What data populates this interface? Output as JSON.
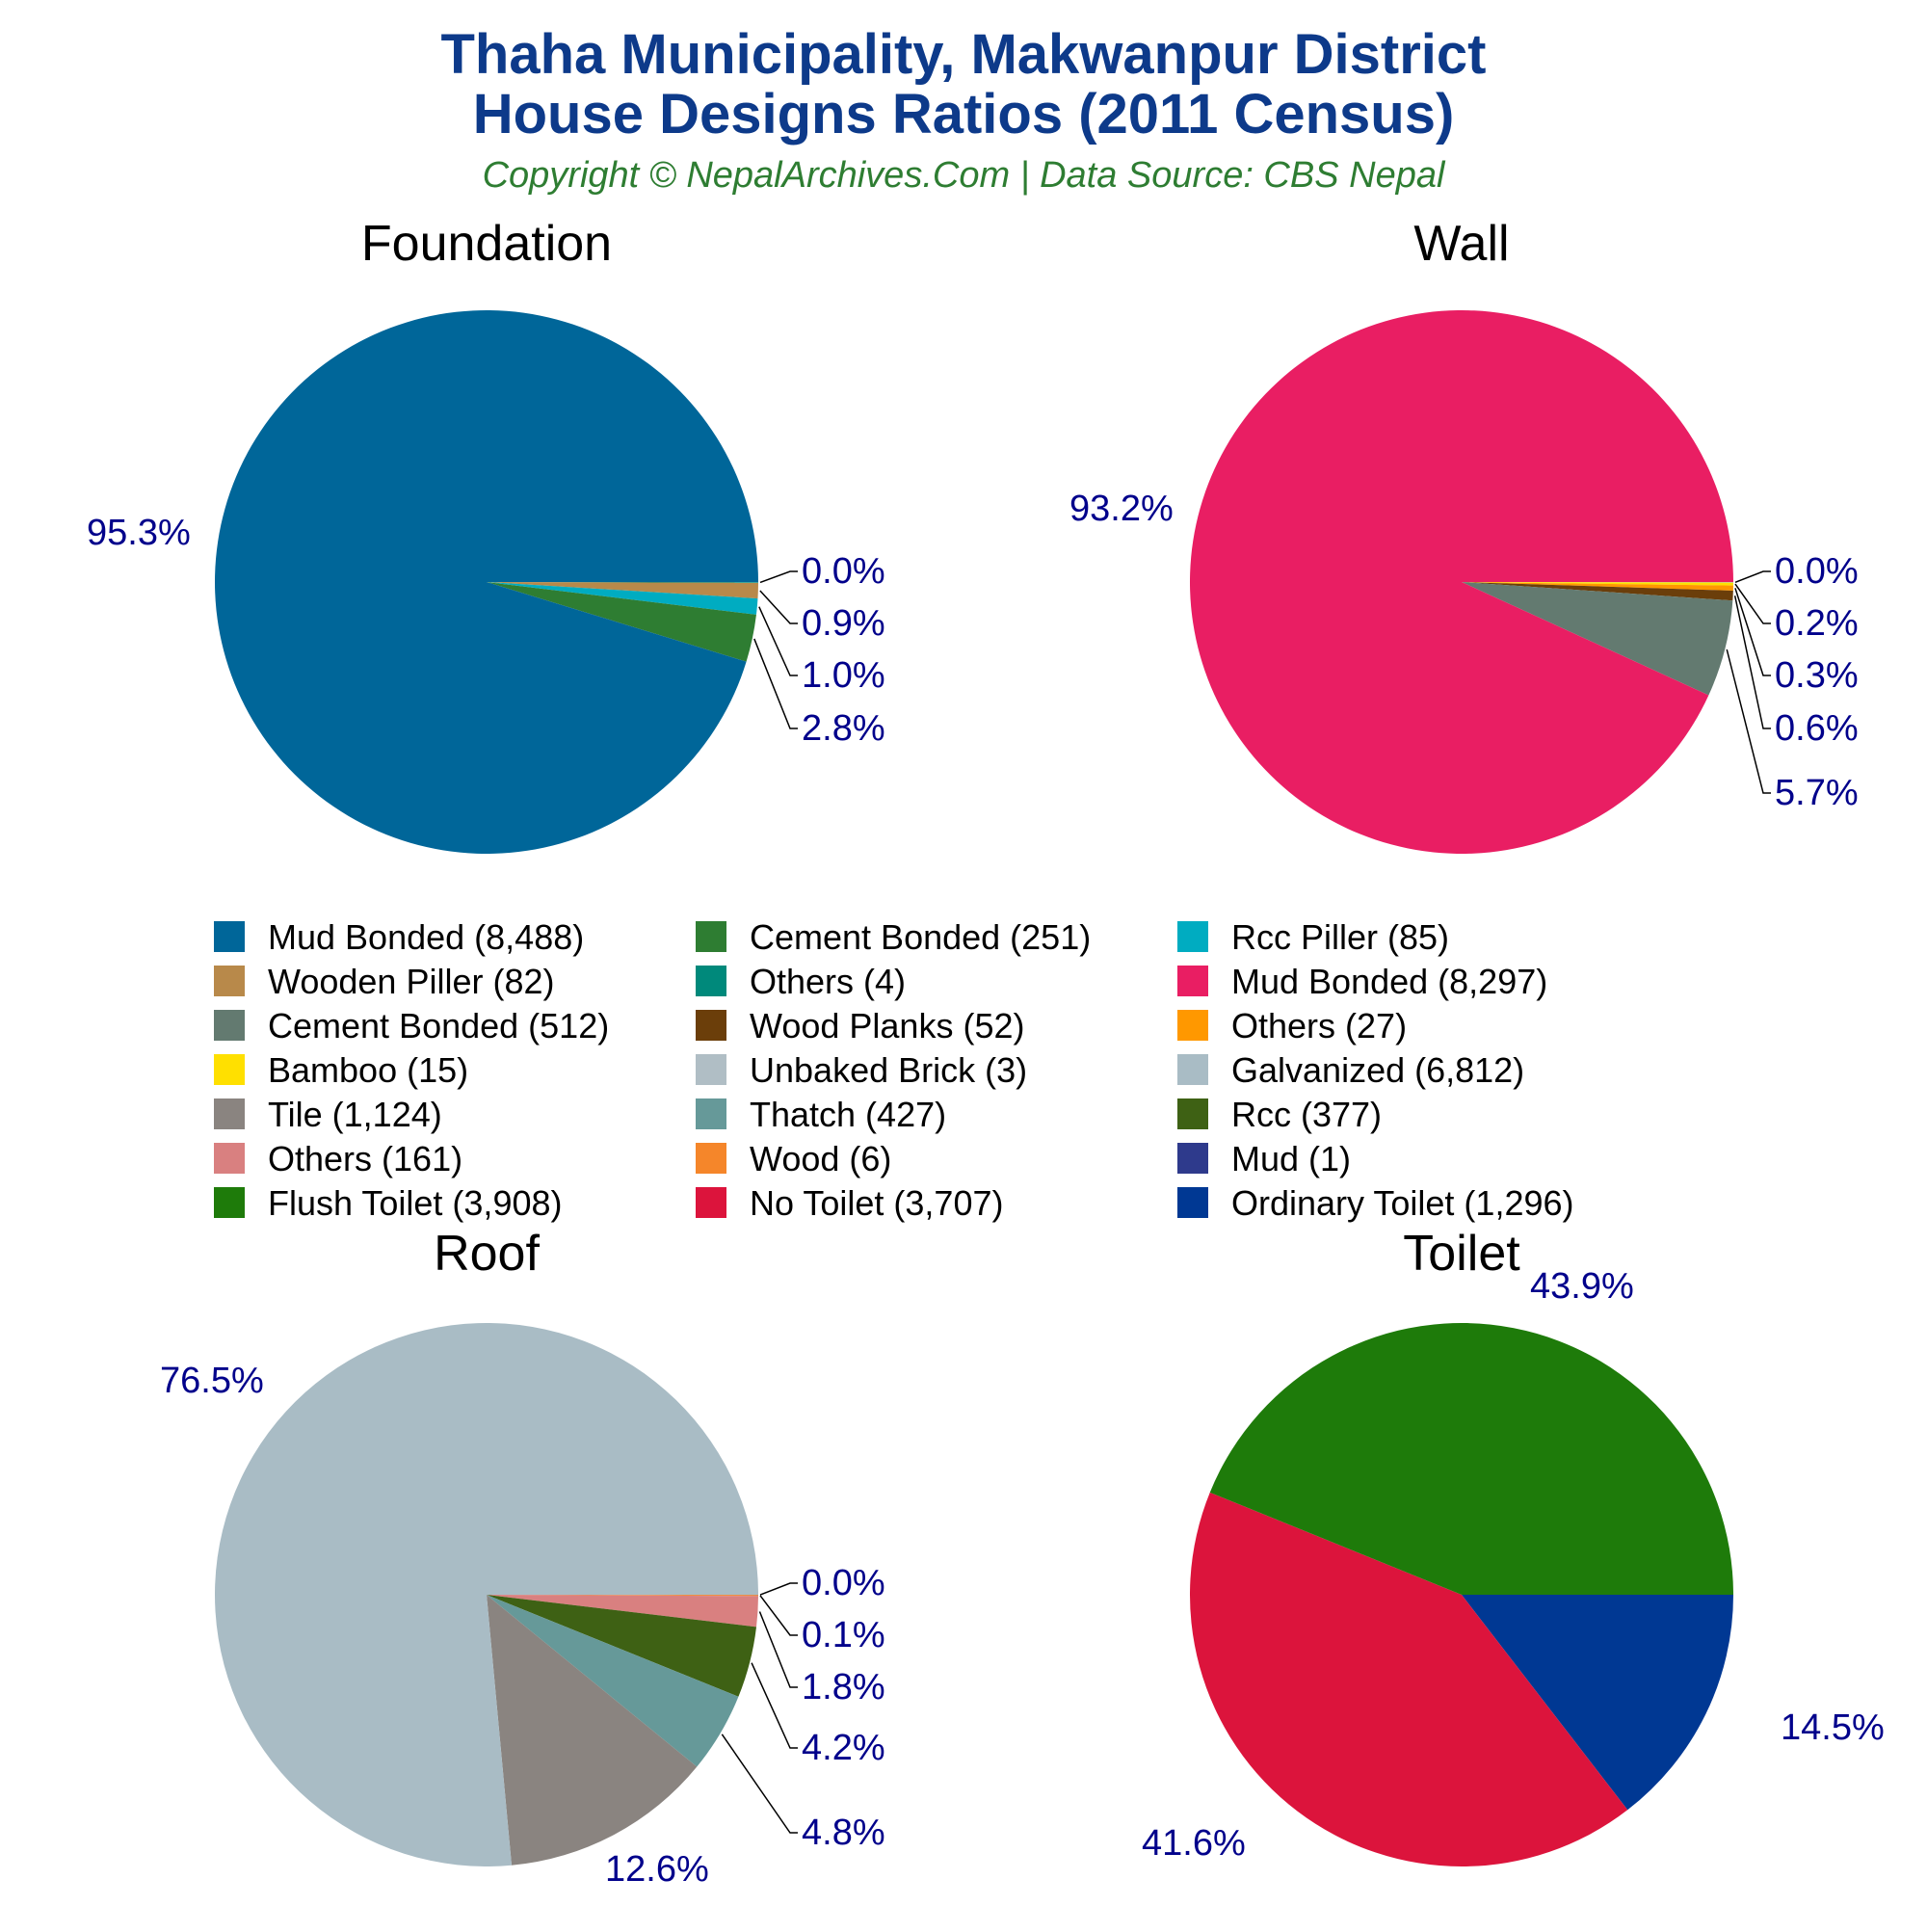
{
  "title_line1": "Thaha Municipality, Makwanpur District",
  "title_line2": "House Designs Ratios (2011 Census)",
  "subtitle": "Copyright © NepalArchives.Com | Data Source: CBS Nepal",
  "chart_data": [
    {
      "type": "pie",
      "title": "Foundation",
      "slices": [
        {
          "label": "Mud Bonded",
          "count": "8,488",
          "value": 8488,
          "pct": "95.3%",
          "color": "#006699"
        },
        {
          "label": "Cement Bonded",
          "count": "251",
          "value": 251,
          "pct": "2.8%",
          "color": "#2e7d32"
        },
        {
          "label": "Rcc Piller",
          "count": "85",
          "value": 85,
          "pct": "1.0%",
          "color": "#00acc1"
        },
        {
          "label": "Wooden Piller",
          "count": "82",
          "value": 82,
          "pct": "0.9%",
          "color": "#b8894a"
        },
        {
          "label": "Others",
          "count": "4",
          "value": 4,
          "pct": "0.0%",
          "color": "#00897b"
        }
      ]
    },
    {
      "type": "pie",
      "title": "Wall",
      "slices": [
        {
          "label": "Mud Bonded",
          "count": "8,297",
          "value": 8297,
          "pct": "93.2%",
          "color": "#e91e63"
        },
        {
          "label": "Cement Bonded",
          "count": "512",
          "value": 512,
          "pct": "5.7%",
          "color": "#637a70"
        },
        {
          "label": "Wood Planks",
          "count": "52",
          "value": 52,
          "pct": "0.6%",
          "color": "#6b3e0a"
        },
        {
          "label": "Others",
          "count": "27",
          "value": 27,
          "pct": "0.3%",
          "color": "#ff9800"
        },
        {
          "label": "Bamboo",
          "count": "15",
          "value": 15,
          "pct": "0.2%",
          "color": "#ffe000"
        },
        {
          "label": "Unbaked Brick",
          "count": "3",
          "value": 3,
          "pct": "0.0%",
          "color": "#b0bec5"
        }
      ]
    },
    {
      "type": "pie",
      "title": "Roof",
      "slices": [
        {
          "label": "Galvanized",
          "count": "6,812",
          "value": 6812,
          "pct": "76.5%",
          "color": "#a9bcc5"
        },
        {
          "label": "Tile",
          "count": "1,124",
          "value": 1124,
          "pct": "12.6%",
          "color": "#8a8480"
        },
        {
          "label": "Thatch",
          "count": "427",
          "value": 427,
          "pct": "4.8%",
          "color": "#669999"
        },
        {
          "label": "Rcc",
          "count": "377",
          "value": 377,
          "pct": "4.2%",
          "color": "#3e6114"
        },
        {
          "label": "Others",
          "count": "161",
          "value": 161,
          "pct": "1.8%",
          "color": "#d98080"
        },
        {
          "label": "Wood",
          "count": "6",
          "value": 6,
          "pct": "0.1%",
          "color": "#f5862a"
        },
        {
          "label": "Mud",
          "count": "1",
          "value": 1,
          "pct": "0.0%",
          "color": "#2e3a8c"
        }
      ]
    },
    {
      "type": "pie",
      "title": "Toilet",
      "slices": [
        {
          "label": "Flush Toilet",
          "count": "3,908",
          "value": 3908,
          "pct": "43.9%",
          "color": "#1e7b0a"
        },
        {
          "label": "No Toilet",
          "count": "3,707",
          "value": 3707,
          "pct": "41.6%",
          "color": "#dc143c"
        },
        {
          "label": "Ordinary Toilet",
          "count": "1,296",
          "value": 1296,
          "pct": "14.5%",
          "color": "#003893"
        }
      ]
    }
  ],
  "legend": [
    {
      "text": "Mud Bonded (8,488)",
      "color": "#006699"
    },
    {
      "text": "Cement Bonded (251)",
      "color": "#2e7d32"
    },
    {
      "text": "Rcc Piller (85)",
      "color": "#00acc1"
    },
    {
      "text": "Wooden Piller (82)",
      "color": "#b8894a"
    },
    {
      "text": "Others (4)",
      "color": "#00897b"
    },
    {
      "text": "Mud Bonded (8,297)",
      "color": "#e91e63"
    },
    {
      "text": "Cement Bonded (512)",
      "color": "#637a70"
    },
    {
      "text": "Wood Planks (52)",
      "color": "#6b3e0a"
    },
    {
      "text": "Others (27)",
      "color": "#ff9800"
    },
    {
      "text": "Bamboo (15)",
      "color": "#ffe000"
    },
    {
      "text": "Unbaked Brick (3)",
      "color": "#b0bec5"
    },
    {
      "text": "Galvanized (6,812)",
      "color": "#a9bcc5"
    },
    {
      "text": "Tile (1,124)",
      "color": "#8a8480"
    },
    {
      "text": "Thatch (427)",
      "color": "#669999"
    },
    {
      "text": "Rcc (377)",
      "color": "#3e6114"
    },
    {
      "text": "Others (161)",
      "color": "#d98080"
    },
    {
      "text": "Wood (6)",
      "color": "#f5862a"
    },
    {
      "text": "Mud (1)",
      "color": "#2e3a8c"
    },
    {
      "text": "Flush Toilet (3,908)",
      "color": "#1e7b0a"
    },
    {
      "text": "No Toilet (3,707)",
      "color": "#dc143c"
    },
    {
      "text": "Ordinary Toilet (1,296)",
      "color": "#003893"
    }
  ]
}
